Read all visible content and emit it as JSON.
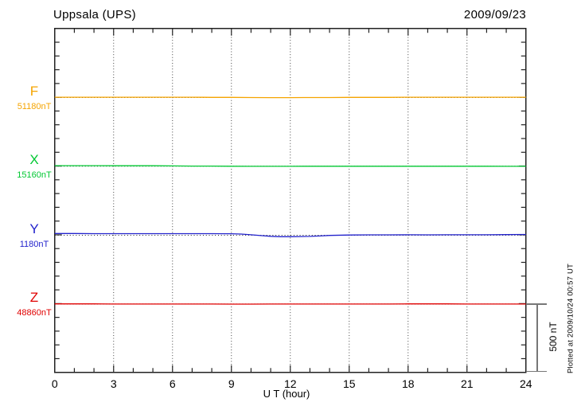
{
  "header": {
    "title": "Uppsala (UPS)",
    "date": "2009/09/23"
  },
  "x_axis": {
    "label": "U T (hour)"
  },
  "scale_bar": {
    "label": "500 nT",
    "value_nT": 500
  },
  "plotted_at": "Plotted at 2009/10/24 00:57 UT",
  "chart_data": {
    "type": "line",
    "title": "Uppsala (UPS)",
    "date": "2009/09/23",
    "xlabel": "U T (hour)",
    "xlim": [
      0,
      24
    ],
    "x_ticks": [
      0,
      3,
      6,
      9,
      12,
      15,
      18,
      21,
      24
    ],
    "minor_tick_hours": 1,
    "grid": "dotted vertical lines every 3 h; dotted horizontal baseline for each channel",
    "scale_per_division_nT": 500,
    "minor_division_nT": 100,
    "series": [
      {
        "name": "F",
        "baseline_label": "51180nT",
        "baseline_nT": 51180,
        "color": "#F5A400",
        "x": [
          0,
          1,
          2,
          3,
          4,
          5,
          6,
          7,
          8,
          9,
          10,
          11,
          12,
          13,
          14,
          15,
          16,
          17,
          18,
          19,
          20,
          21,
          22,
          23,
          24
        ],
        "dev_nT": [
          2,
          2,
          2,
          2,
          2,
          2,
          2,
          2,
          1,
          1,
          0,
          -1,
          -1,
          0,
          0,
          1,
          1,
          1,
          2,
          2,
          2,
          2,
          2,
          2,
          2
        ]
      },
      {
        "name": "X",
        "baseline_label": "15160nT",
        "baseline_nT": 15160,
        "color": "#00C832",
        "x": [
          0,
          1,
          2,
          3,
          4,
          5,
          6,
          7,
          8,
          9,
          10,
          11,
          12,
          13,
          14,
          15,
          16,
          17,
          18,
          19,
          20,
          21,
          22,
          23,
          24
        ],
        "dev_nT": [
          4,
          4,
          4,
          3,
          3,
          3,
          2,
          1,
          1,
          0,
          -1,
          -1,
          -1,
          0,
          0,
          0,
          0,
          0,
          0,
          0,
          0,
          0,
          0,
          -1,
          -1
        ]
      },
      {
        "name": "Y",
        "baseline_label": "1180nT",
        "baseline_nT": 1180,
        "color": "#2222CC",
        "x": [
          0,
          1,
          2,
          3,
          4,
          5,
          6,
          7,
          8,
          9,
          9.5,
          10,
          10.5,
          11,
          11.5,
          12,
          12.5,
          13,
          13.5,
          14,
          15,
          16,
          17,
          18,
          19,
          20,
          21,
          22,
          23,
          24
        ],
        "dev_nT": [
          13,
          13,
          12,
          12,
          12,
          12,
          12,
          12,
          12,
          11,
          9,
          4,
          -2,
          -7,
          -10,
          -10,
          -9,
          -8,
          -5,
          -1,
          2,
          3,
          3,
          4,
          3,
          4,
          4,
          4,
          5,
          6
        ]
      },
      {
        "name": "Z",
        "baseline_label": "48860nT",
        "baseline_nT": 48860,
        "color": "#E00000",
        "x": [
          0,
          1,
          2,
          3,
          4,
          5,
          6,
          7,
          8,
          9,
          10,
          11,
          12,
          13,
          14,
          15,
          16,
          17,
          18,
          19,
          20,
          21,
          22,
          23,
          24
        ],
        "dev_nT": [
          1,
          1,
          1,
          0,
          0,
          0,
          0,
          0,
          0,
          -1,
          -1,
          0,
          0,
          0,
          0,
          0,
          0,
          0,
          1,
          1,
          1,
          0,
          0,
          0,
          0
        ]
      }
    ]
  }
}
